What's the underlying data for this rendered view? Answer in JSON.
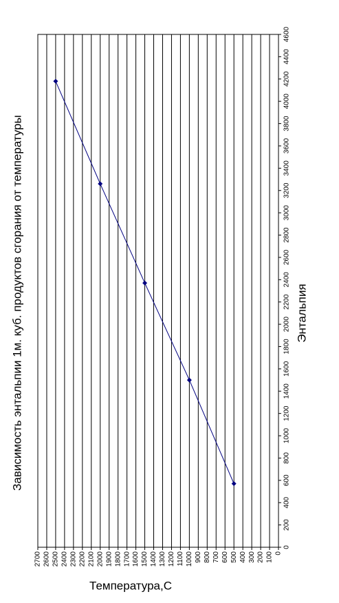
{
  "chart_data": {
    "type": "line",
    "title": "Зависимость энтальпии 1м. куб. продуктов сгорания от температуры",
    "x_label": "Температура,С",
    "y_label": "Энтальпия",
    "x": [
      500,
      1000,
      1500,
      2000,
      2500
    ],
    "series": [
      {
        "name": "Энтальпия",
        "color": "#000080",
        "values": [
          570,
          1500,
          2370,
          3260,
          4180
        ]
      }
    ],
    "xlim": [
      0,
      2700
    ],
    "xticks": [
      0,
      100,
      200,
      300,
      400,
      500,
      600,
      700,
      800,
      900,
      1000,
      1100,
      1200,
      1300,
      1400,
      1500,
      1600,
      1700,
      1800,
      1900,
      2000,
      2100,
      2200,
      2300,
      2400,
      2500,
      2600,
      2700
    ],
    "ylim": [
      0,
      4600
    ],
    "yticks": [
      0,
      200,
      400,
      600,
      800,
      1000,
      1200,
      1400,
      1600,
      1800,
      2000,
      2200,
      2400,
      2600,
      2800,
      3000,
      3200,
      3400,
      3600,
      3800,
      4000,
      4200,
      4400,
      4600
    ],
    "grid": true
  }
}
